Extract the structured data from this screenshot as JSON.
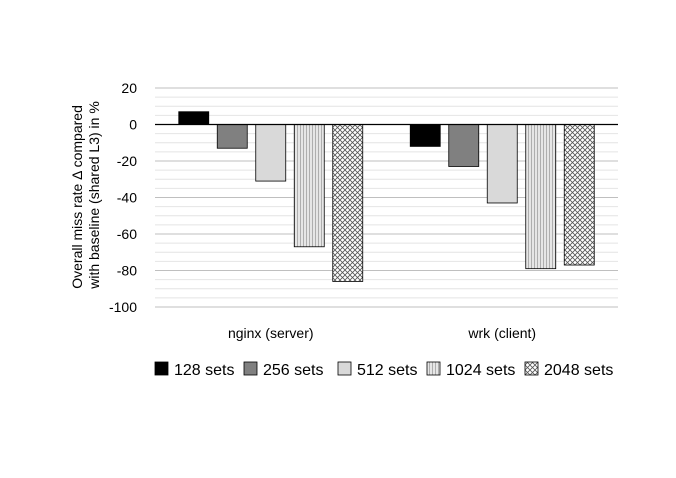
{
  "chart_data": {
    "type": "bar",
    "categories": [
      "nginx (server)",
      "wrk (client)"
    ],
    "series": [
      {
        "name": "128 sets",
        "values": [
          7,
          -12
        ],
        "color": "#000000",
        "pattern": "solid"
      },
      {
        "name": "256 sets",
        "values": [
          -13,
          -23
        ],
        "color": "#808080",
        "pattern": "solid"
      },
      {
        "name": "512 sets",
        "values": [
          -31,
          -43
        ],
        "color": "#d9d9d9",
        "pattern": "solid"
      },
      {
        "name": "1024 sets",
        "values": [
          -67,
          -79
        ],
        "color": "#dcdcdc",
        "pattern": "vertical-lines"
      },
      {
        "name": "2048 sets",
        "values": [
          -86,
          -77
        ],
        "color": "#ffffff",
        "pattern": "crosshatch"
      }
    ],
    "ylabel": [
      "Overall miss rate Δ compared",
      "with baseline (shared L3) in %"
    ],
    "ylim": [
      -100,
      20
    ],
    "yticks": [
      20,
      0,
      -20,
      -40,
      -60,
      -80,
      -100
    ],
    "grid": true,
    "legend_position": "bottom"
  }
}
